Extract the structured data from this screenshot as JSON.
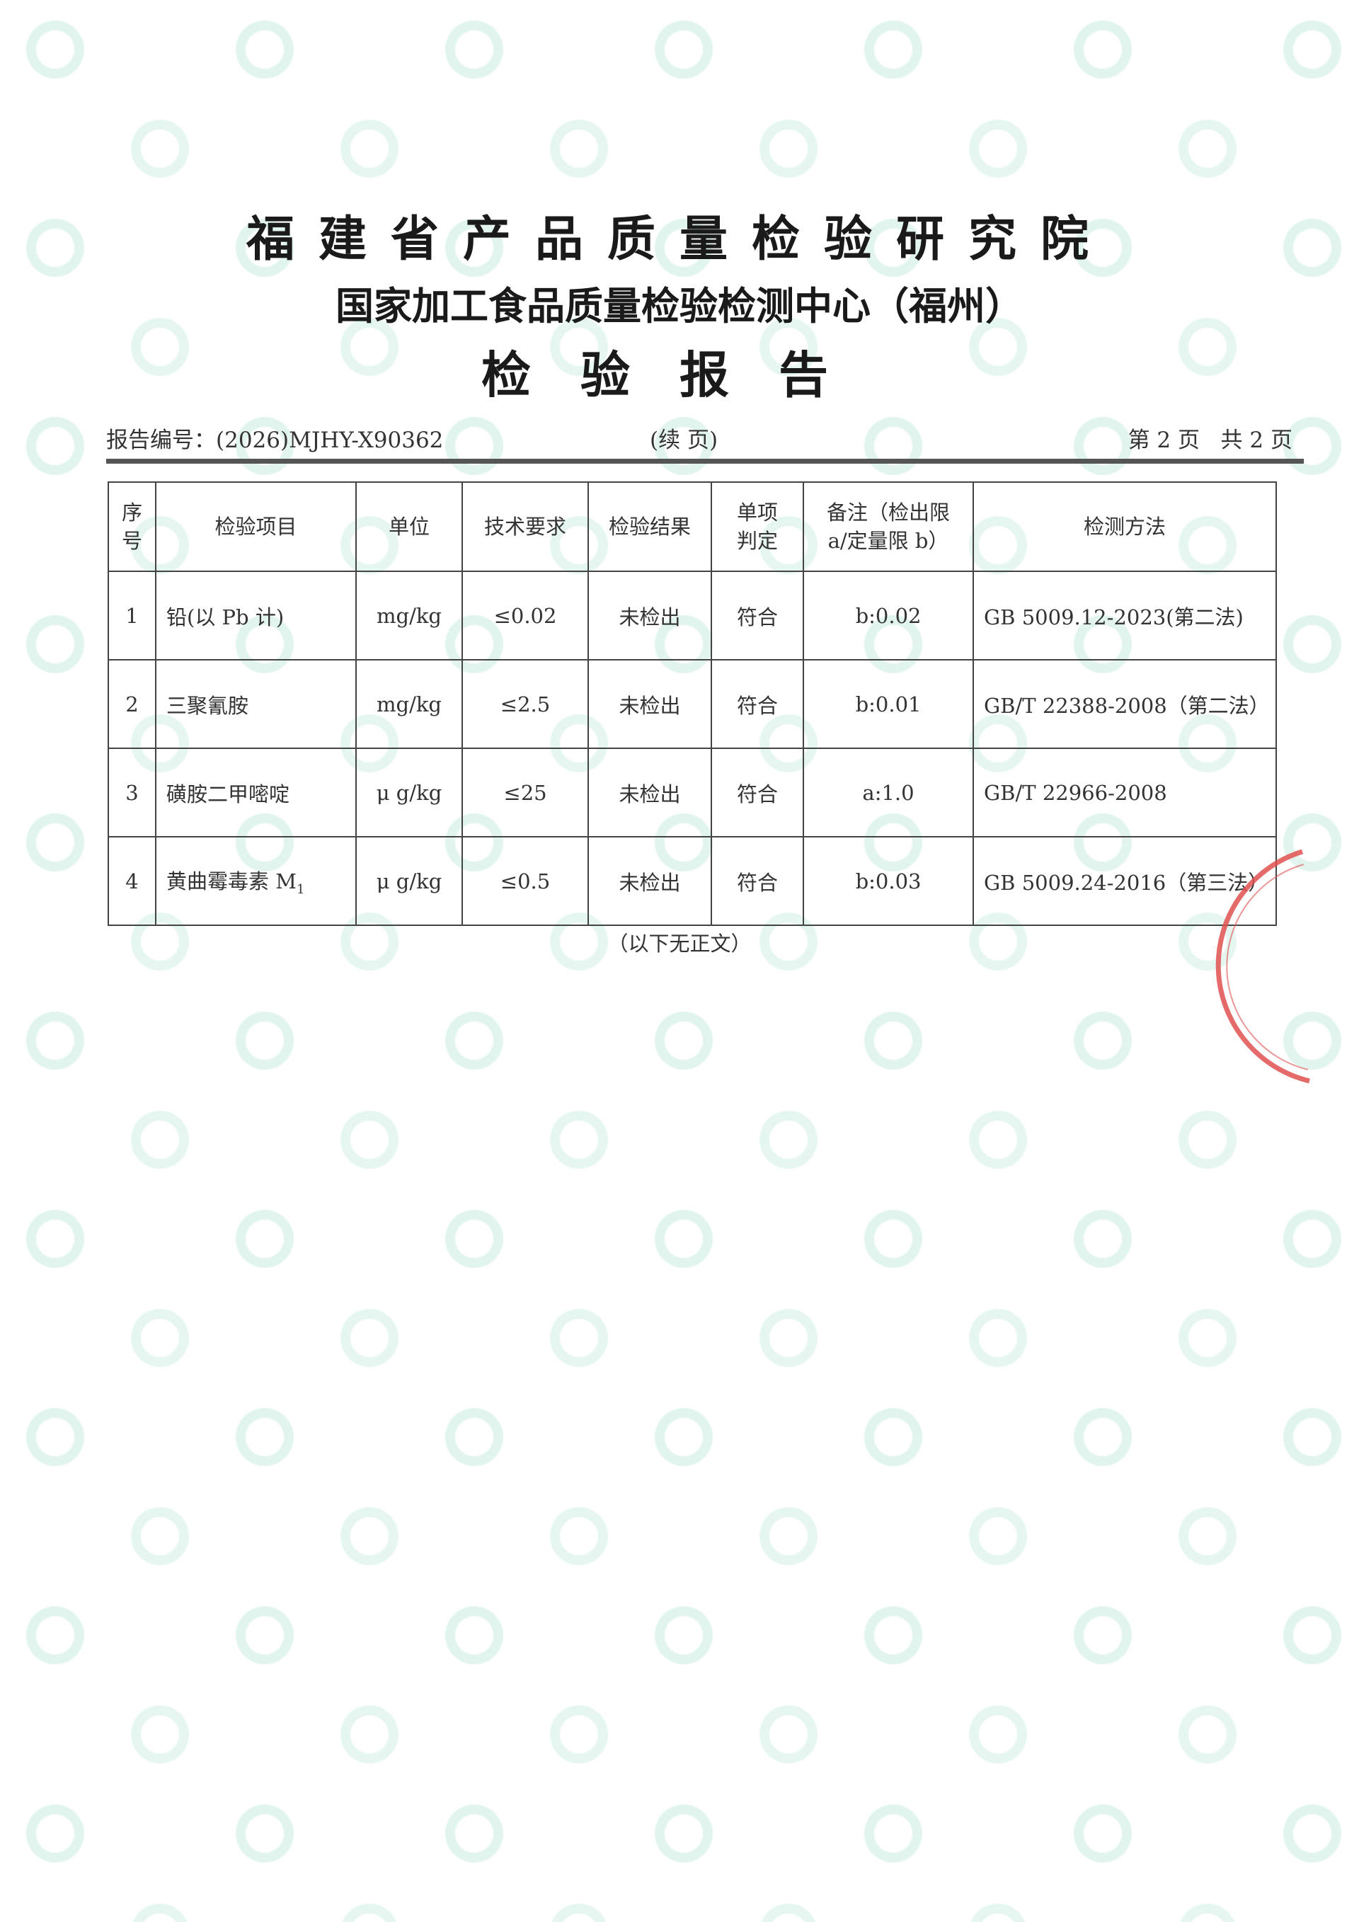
{
  "header": {
    "institute": "福建省产品质量检验研究院",
    "center": "国家加工食品质量检验检测中心（福州）",
    "doc_title": "检验报告",
    "report_no_label": "报告编号：",
    "report_no": "(2026)MJHY-X90362",
    "continued": "(续 页)",
    "page_info": "第 2 页   共 2 页"
  },
  "table": {
    "columns": [
      "序号",
      "检验项目",
      "单位",
      "技术要求",
      "检验结果",
      "单项判定",
      "备注（检出限 a/定量限 b）",
      "检测方法"
    ],
    "rows": [
      {
        "no": "1",
        "item": "铅(以 Pb 计)",
        "unit": "mg/kg",
        "requirement": "≤0.02",
        "result": "未检出",
        "judgement": "符合",
        "note": "b:0.02",
        "method": "GB 5009.12-2023(第二法)"
      },
      {
        "no": "2",
        "item": "三聚氰胺",
        "unit": "mg/kg",
        "requirement": "≤2.5",
        "result": "未检出",
        "judgement": "符合",
        "note": "b:0.01",
        "method": "GB/T 22388-2008（第二法）"
      },
      {
        "no": "3",
        "item": "磺胺二甲嘧啶",
        "unit": "μ g/kg",
        "requirement": "≤25",
        "result": "未检出",
        "judgement": "符合",
        "note": "a:1.0",
        "method": "GB/T 22966-2008"
      },
      {
        "no": "4",
        "item": "黄曲霉毒素 M",
        "item_sub": "1",
        "unit": "μ g/kg",
        "requirement": "≤0.5",
        "result": "未检出",
        "judgement": "符合",
        "note": "b:0.03",
        "method": "GB 5009.24-2016（第三法）"
      }
    ]
  },
  "footer": {
    "end_note": "（以下无正文）"
  },
  "stamp": {
    "color": "#e05050"
  },
  "watermark": {
    "color": "#aae1cd"
  }
}
